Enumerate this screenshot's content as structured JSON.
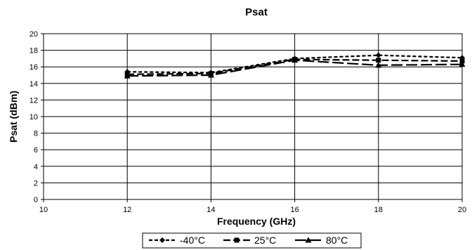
{
  "chart_data": {
    "type": "line",
    "title": "Psat",
    "xlabel": "Frequency (GHz)",
    "ylabel": "Psat (dBm)",
    "xlim": [
      10,
      20
    ],
    "ylim": [
      0,
      20
    ],
    "x_ticks": [
      "10",
      "12",
      "14",
      "16",
      "18",
      "20"
    ],
    "y_ticks": [
      "0",
      "2",
      "4",
      "6",
      "8",
      "10",
      "12",
      "14",
      "16",
      "18",
      "20"
    ],
    "grid": true,
    "legend_position": "bottom",
    "series": [
      {
        "name": "-40°C",
        "marker": "diamond",
        "dash": "short",
        "color": "#000000",
        "x": [
          12,
          14,
          16,
          18,
          20
        ],
        "y": [
          15.4,
          15.3,
          17.0,
          17.4,
          17.1
        ]
      },
      {
        "name": "25°C",
        "marker": "square",
        "dash": "medium",
        "color": "#000000",
        "x": [
          12,
          14,
          16,
          18,
          20
        ],
        "y": [
          15.1,
          15.2,
          16.9,
          16.8,
          16.7
        ]
      },
      {
        "name": "80°C",
        "marker": "triangle",
        "dash": "long",
        "color": "#000000",
        "x": [
          12,
          14,
          16,
          18,
          20
        ],
        "y": [
          14.9,
          15.0,
          16.8,
          16.2,
          16.3
        ]
      }
    ]
  }
}
